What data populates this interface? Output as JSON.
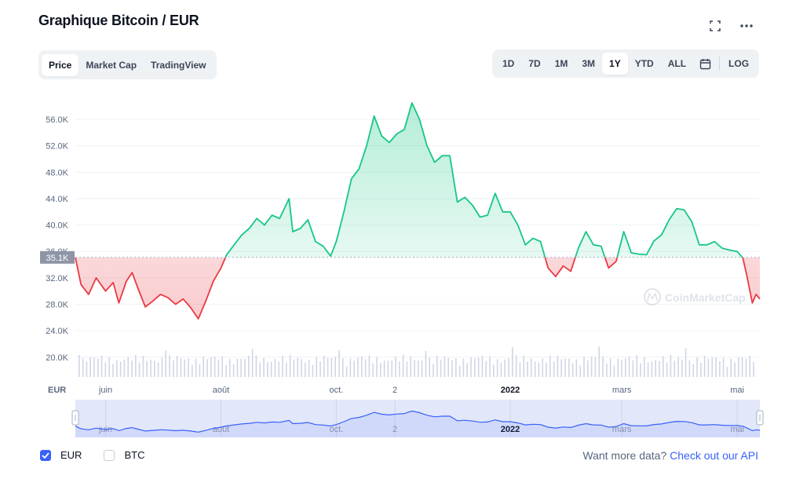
{
  "header": {
    "title": "Graphique Bitcoin / EUR"
  },
  "tabs": [
    {
      "label": "Price",
      "active": true
    },
    {
      "label": "Market Cap",
      "active": false
    },
    {
      "label": "TradingView",
      "active": false
    }
  ],
  "ranges": [
    {
      "label": "1D",
      "active": false
    },
    {
      "label": "7D",
      "active": false
    },
    {
      "label": "1M",
      "active": false
    },
    {
      "label": "3M",
      "active": false
    },
    {
      "label": "1Y",
      "active": true
    },
    {
      "label": "YTD",
      "active": false
    },
    {
      "label": "ALL",
      "active": false
    }
  ],
  "log_label": "LOG",
  "icons": {
    "fullscreen": "fullscreen-icon",
    "more": "more-options-icon",
    "calendar": "calendar-icon",
    "logo": "coinmarketcap-logo"
  },
  "watermark": "CoinMarketCap",
  "colors": {
    "up": "#16c784",
    "down": "#ea3943",
    "accent": "#3861fb",
    "baseline_tag": "#8e95a6"
  },
  "footer": {
    "series": [
      {
        "label": "EUR",
        "checked": true
      },
      {
        "label": "BTC",
        "checked": false
      }
    ],
    "more_text": "Want more data?",
    "more_link": "Check out our API"
  },
  "chart_data": {
    "type": "area",
    "currency_label": "EUR",
    "baseline": 35100,
    "baseline_label": "35.1K",
    "ylim": [
      17000,
      61000
    ],
    "yticks": [
      20000,
      24000,
      28000,
      32000,
      36000,
      40000,
      44000,
      48000,
      52000,
      56000
    ],
    "ytick_labels": [
      "20.0K",
      "24.0K",
      "28.0K",
      "32.0K",
      "36.0K",
      "40.0K",
      "44.0K",
      "48.0K",
      "52.0K",
      "56.0K"
    ],
    "xlim": [
      "2021-05-16",
      "2022-05-13"
    ],
    "xticks": [
      {
        "date": "2021-06-01",
        "label": "juin"
      },
      {
        "date": "2021-08-01",
        "label": "août"
      },
      {
        "date": "2021-10-01",
        "label": "oct."
      },
      {
        "date": "2021-11-01",
        "label": "2"
      },
      {
        "date": "2022-01-01",
        "label": "2022"
      },
      {
        "date": "2022-03-01",
        "label": "mars"
      },
      {
        "date": "2022-05-01",
        "label": "mai"
      }
    ],
    "grid": true,
    "series": [
      {
        "points": [
          [
            "2021-05-16",
            35100
          ],
          [
            "2021-05-19",
            31000
          ],
          [
            "2021-05-23",
            29500
          ],
          [
            "2021-05-27",
            32000
          ],
          [
            "2021-06-01",
            30000
          ],
          [
            "2021-06-05",
            31300
          ],
          [
            "2021-06-08",
            28200
          ],
          [
            "2021-06-12",
            31500
          ],
          [
            "2021-06-15",
            32800
          ],
          [
            "2021-06-18",
            30500
          ],
          [
            "2021-06-22",
            27600
          ],
          [
            "2021-06-26",
            28500
          ],
          [
            "2021-06-30",
            29500
          ],
          [
            "2021-07-04",
            29000
          ],
          [
            "2021-07-08",
            28000
          ],
          [
            "2021-07-12",
            28800
          ],
          [
            "2021-07-16",
            27500
          ],
          [
            "2021-07-20",
            25800
          ],
          [
            "2021-07-24",
            28500
          ],
          [
            "2021-07-28",
            31500
          ],
          [
            "2021-08-01",
            33500
          ],
          [
            "2021-08-04",
            35500
          ],
          [
            "2021-08-08",
            37000
          ],
          [
            "2021-08-12",
            38500
          ],
          [
            "2021-08-16",
            39500
          ],
          [
            "2021-08-20",
            41000
          ],
          [
            "2021-08-24",
            40000
          ],
          [
            "2021-08-28",
            41500
          ],
          [
            "2021-09-01",
            41000
          ],
          [
            "2021-09-06",
            44000
          ],
          [
            "2021-09-08",
            39000
          ],
          [
            "2021-09-12",
            39500
          ],
          [
            "2021-09-16",
            40800
          ],
          [
            "2021-09-20",
            37500
          ],
          [
            "2021-09-24",
            36800
          ],
          [
            "2021-09-28",
            35300
          ],
          [
            "2021-10-01",
            37500
          ],
          [
            "2021-10-05",
            42000
          ],
          [
            "2021-10-09",
            47000
          ],
          [
            "2021-10-13",
            48500
          ],
          [
            "2021-10-17",
            52000
          ],
          [
            "2021-10-21",
            56500
          ],
          [
            "2021-10-25",
            53500
          ],
          [
            "2021-10-29",
            52500
          ],
          [
            "2021-11-02",
            53800
          ],
          [
            "2021-11-06",
            54500
          ],
          [
            "2021-11-10",
            58500
          ],
          [
            "2021-11-14",
            56000
          ],
          [
            "2021-11-18",
            52000
          ],
          [
            "2021-11-22",
            49500
          ],
          [
            "2021-11-26",
            50500
          ],
          [
            "2021-11-30",
            50500
          ],
          [
            "2021-12-04",
            43500
          ],
          [
            "2021-12-08",
            44200
          ],
          [
            "2021-12-12",
            43000
          ],
          [
            "2021-12-16",
            41200
          ],
          [
            "2021-12-20",
            41500
          ],
          [
            "2021-12-24",
            44800
          ],
          [
            "2021-12-28",
            42000
          ],
          [
            "2022-01-01",
            42000
          ],
          [
            "2022-01-05",
            40000
          ],
          [
            "2022-01-09",
            37000
          ],
          [
            "2022-01-13",
            38000
          ],
          [
            "2022-01-17",
            37500
          ],
          [
            "2022-01-21",
            33500
          ],
          [
            "2022-01-25",
            32200
          ],
          [
            "2022-01-29",
            33800
          ],
          [
            "2022-02-02",
            33000
          ],
          [
            "2022-02-06",
            36500
          ],
          [
            "2022-02-10",
            39000
          ],
          [
            "2022-02-14",
            37000
          ],
          [
            "2022-02-18",
            36800
          ],
          [
            "2022-02-22",
            33500
          ],
          [
            "2022-02-26",
            34500
          ],
          [
            "2022-03-02",
            39000
          ],
          [
            "2022-03-06",
            35800
          ],
          [
            "2022-03-10",
            35600
          ],
          [
            "2022-03-14",
            35500
          ],
          [
            "2022-03-18",
            37600
          ],
          [
            "2022-03-22",
            38500
          ],
          [
            "2022-03-26",
            40800
          ],
          [
            "2022-03-30",
            42500
          ],
          [
            "2022-04-03",
            42300
          ],
          [
            "2022-04-07",
            40500
          ],
          [
            "2022-04-11",
            37000
          ],
          [
            "2022-04-15",
            37000
          ],
          [
            "2022-04-19",
            37500
          ],
          [
            "2022-04-23",
            36500
          ],
          [
            "2022-04-27",
            36200
          ],
          [
            "2022-05-01",
            36000
          ],
          [
            "2022-05-04",
            35000
          ],
          [
            "2022-05-06",
            32500
          ],
          [
            "2022-05-09",
            28200
          ],
          [
            "2022-05-11",
            29500
          ],
          [
            "2022-05-13",
            28800
          ]
        ]
      }
    ]
  }
}
